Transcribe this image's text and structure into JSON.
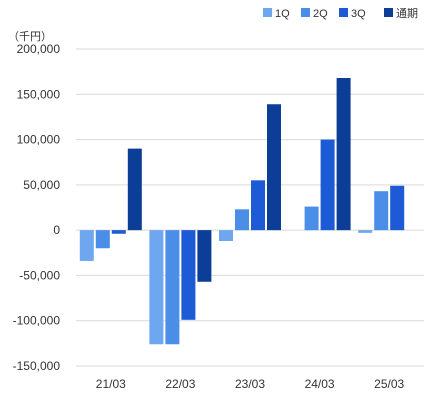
{
  "chart_data": {
    "type": "bar",
    "unit_label": "（千円）",
    "categories": [
      "21/03",
      "22/03",
      "23/03",
      "24/03",
      "25/03"
    ],
    "series": [
      {
        "name": "1Q",
        "color": "#6ea6f0",
        "values": [
          -34000,
          -126000,
          -12000,
          null,
          -3000
        ]
      },
      {
        "name": "2Q",
        "color": "#4a8ee8",
        "values": [
          -20000,
          -126000,
          23000,
          26000,
          43000
        ]
      },
      {
        "name": "3Q",
        "color": "#1d5ad6",
        "values": [
          -4000,
          -99000,
          55000,
          100000,
          49000
        ]
      },
      {
        "name": "通期",
        "color": "#0c3d97",
        "values": [
          90000,
          -57000,
          139000,
          168000,
          null
        ]
      }
    ],
    "yticks": [
      "200,000",
      "150,000",
      "100,000",
      "50,000",
      "0",
      "-50,000",
      "-100,000",
      "-150,000"
    ],
    "ytick_values": [
      200000,
      150000,
      100000,
      50000,
      0,
      -50000,
      -100000,
      -150000
    ],
    "ylim": [
      -150000,
      200000
    ],
    "grid": true,
    "legend_position": "top-right"
  }
}
